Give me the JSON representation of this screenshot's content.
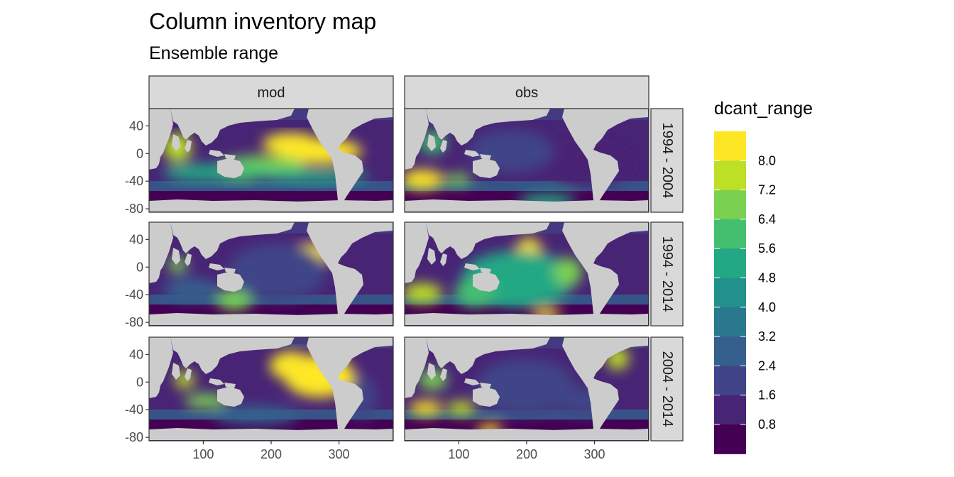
{
  "title": "Column inventory map",
  "subtitle": "Ensemble range",
  "chart_data": {
    "type": "heatmap",
    "facet_columns": [
      "mod",
      "obs"
    ],
    "facet_rows": [
      "1994 - 2004",
      "1994 - 2014",
      "2004 - 2014"
    ],
    "x_ticks": [
      100,
      200,
      300
    ],
    "y_ticks": [
      40,
      0,
      -40,
      -80
    ],
    "xlim": [
      20,
      380
    ],
    "ylim": [
      -85,
      65
    ],
    "land_color": "#cccccc",
    "legend": {
      "title": "dcant_range",
      "position": "right",
      "labels": [
        "8.0",
        "7.2",
        "6.4",
        "5.6",
        "4.8",
        "4.0",
        "3.2",
        "2.4",
        "1.6",
        "0.8"
      ],
      "bins": [
        {
          "color": "#fde725"
        },
        {
          "color": "#bddf26"
        },
        {
          "color": "#7ad151"
        },
        {
          "color": "#44bf70"
        },
        {
          "color": "#22a884"
        },
        {
          "color": "#21918c"
        },
        {
          "color": "#2a788e"
        },
        {
          "color": "#355f8d"
        },
        {
          "color": "#414487"
        },
        {
          "color": "#482475"
        },
        {
          "color": "#440154"
        }
      ]
    }
  }
}
